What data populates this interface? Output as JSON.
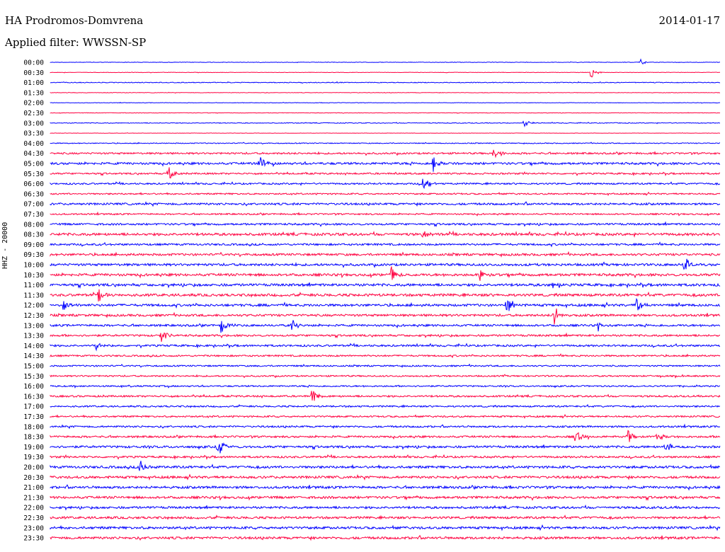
{
  "header": {
    "station": "HA Prodromos-Domvrena",
    "date": "2014-01-17",
    "filter": "Applied filter: WWSSN-SP"
  },
  "chart_data": {
    "type": "line",
    "channel_label": "HHZ - 20000",
    "row_labels": [
      "00:00",
      "00:30",
      "01:00",
      "01:30",
      "02:00",
      "02:30",
      "03:00",
      "03:30",
      "04:00",
      "04:30",
      "05:00",
      "05:30",
      "06:00",
      "06:30",
      "07:00",
      "07:30",
      "08:00",
      "08:30",
      "09:00",
      "09:30",
      "10:00",
      "10:30",
      "11:00",
      "11:30",
      "12:00",
      "12:30",
      "13:00",
      "13:30",
      "14:00",
      "14:30",
      "15:00",
      "15:30",
      "16:00",
      "16:30",
      "17:00",
      "17:30",
      "18:00",
      "18:30",
      "19:00",
      "19:30",
      "20:00",
      "20:30",
      "21:00",
      "21:30",
      "22:00",
      "22:30",
      "23:00",
      "23:30"
    ],
    "series_colors": [
      "#0000ff",
      "#ff0040"
    ],
    "noise_level": [
      0.3,
      0.3,
      0.5,
      0.3,
      0.3,
      0.3,
      0.5,
      0.2,
      0.6,
      1.2,
      1.5,
      1.1,
      1.1,
      1.0,
      1.4,
      1.0,
      1.3,
      1.7,
      1.3,
      1.5,
      1.6,
      1.7,
      1.7,
      1.7,
      1.6,
      1.5,
      1.4,
      1.3,
      1.3,
      1.1,
      1.0,
      1.0,
      1.0,
      1.2,
      1.1,
      1.1,
      1.2,
      1.3,
      1.5,
      1.3,
      1.6,
      1.6,
      1.6,
      1.6,
      1.5,
      1.5,
      1.6,
      1.6
    ],
    "events": [
      {
        "row": 0,
        "x": 905,
        "amp": 4
      },
      {
        "row": 1,
        "x": 835,
        "amp": 8
      },
      {
        "row": 6,
        "x": 740,
        "amp": 6
      },
      {
        "row": 9,
        "x": 698,
        "amp": 12
      },
      {
        "row": 10,
        "x": 367,
        "amp": 12
      },
      {
        "row": 10,
        "x": 612,
        "amp": 12
      },
      {
        "row": 11,
        "x": 238,
        "amp": 12
      },
      {
        "row": 12,
        "x": 598,
        "amp": 12
      },
      {
        "row": 17,
        "x": 597,
        "amp": 6
      },
      {
        "row": 21,
        "x": 553,
        "amp": 13
      },
      {
        "row": 21,
        "x": 678,
        "amp": 8
      },
      {
        "row": 20,
        "x": 967,
        "amp": 12
      },
      {
        "row": 22,
        "x": 779,
        "amp": 8
      },
      {
        "row": 23,
        "x": 139,
        "amp": 12
      },
      {
        "row": 24,
        "x": 90,
        "amp": 11
      },
      {
        "row": 24,
        "x": 716,
        "amp": 12
      },
      {
        "row": 24,
        "x": 899,
        "amp": 14
      },
      {
        "row": 25,
        "x": 783,
        "amp": 16
      },
      {
        "row": 26,
        "x": 313,
        "amp": 14
      },
      {
        "row": 26,
        "x": 412,
        "amp": 9
      },
      {
        "row": 26,
        "x": 845,
        "amp": 6
      },
      {
        "row": 27,
        "x": 228,
        "amp": 9
      },
      {
        "row": 28,
        "x": 136,
        "amp": 7
      },
      {
        "row": 33,
        "x": 441,
        "amp": 13
      },
      {
        "row": 37,
        "x": 813,
        "amp": 11
      },
      {
        "row": 37,
        "x": 887,
        "amp": 10
      },
      {
        "row": 37,
        "x": 929,
        "amp": 9
      },
      {
        "row": 38,
        "x": 940,
        "amp": 12
      },
      {
        "row": 38,
        "x": 308,
        "amp": 16
      },
      {
        "row": 40,
        "x": 198,
        "amp": 10
      }
    ]
  }
}
